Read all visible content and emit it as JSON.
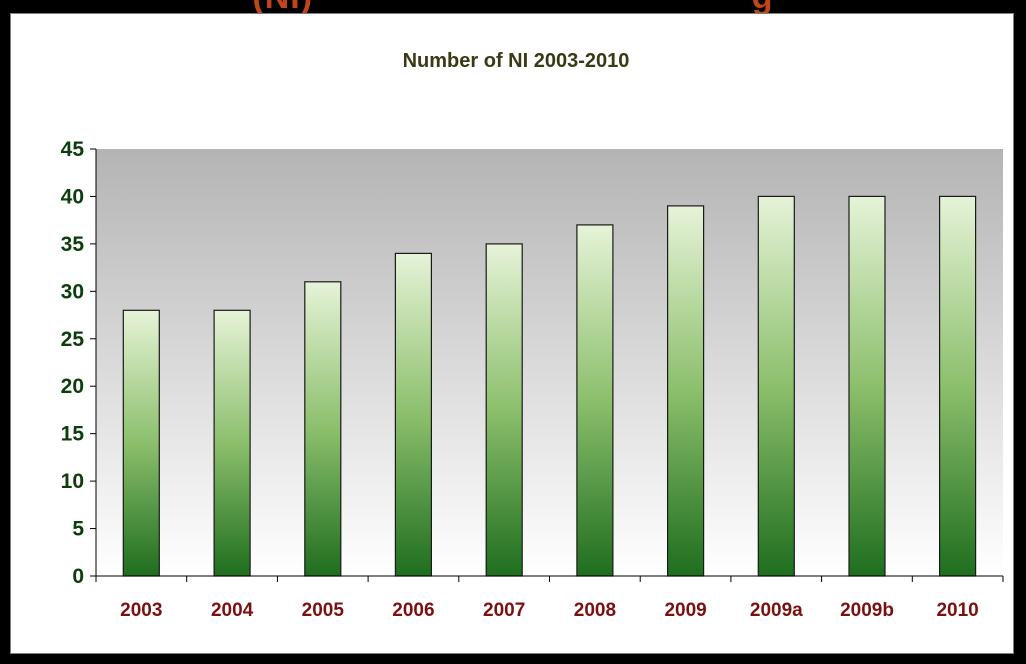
{
  "heading_fragment": "(NI)                                          g",
  "chart_data": {
    "type": "bar",
    "title": "Number of NI 2003-2010",
    "xlabel": "",
    "ylabel": "",
    "categories": [
      "2003",
      "2004",
      "2005",
      "2006",
      "2007",
      "2008",
      "2009",
      "2009a",
      "2009b",
      "2010"
    ],
    "values": [
      28,
      28,
      31,
      34,
      35,
      37,
      39,
      40,
      40,
      40
    ],
    "ylim": [
      0,
      45
    ],
    "yticks": [
      0,
      5,
      10,
      15,
      20,
      25,
      30,
      35,
      40,
      45
    ],
    "grid": false,
    "legend": "none",
    "colors": {
      "bar_top": "#e6f3d8",
      "bar_mid": "#8cbf6c",
      "bar_bottom": "#1e6e1e",
      "bar_outline": "#1a1a1a",
      "plot_bg_top": "#b4b4b4",
      "plot_bg_bottom": "#ffffff",
      "title": "#3a3a14",
      "y_labels": "#0c3d0c",
      "x_labels": "#7a1010"
    }
  }
}
